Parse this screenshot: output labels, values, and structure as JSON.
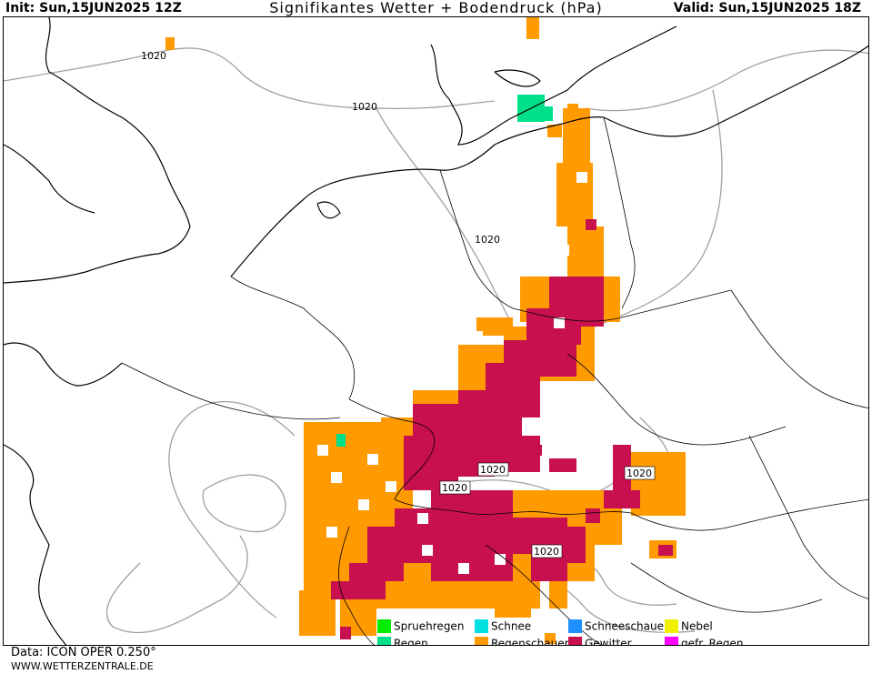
{
  "header": {
    "init": "Init: Sun,15JUN2025 12Z",
    "title": "Signifikantes Wetter  +  Bodendruck (hPa)",
    "valid": "Valid: Sun,15JUN2025 18Z"
  },
  "isobar_labels": [
    "1020",
    "1020",
    "1020",
    "1020",
    "1020",
    "1020",
    "1020"
  ],
  "legend": [
    {
      "label": "Spruehregen",
      "color": "#00ee00"
    },
    {
      "label": "Schnee",
      "color": "#00e0e0"
    },
    {
      "label": "Schneeschauer",
      "color": "#1e90ff"
    },
    {
      "label": "Nebel",
      "color": "#f0f000"
    },
    {
      "label": "Regen",
      "color": "#00e08a"
    },
    {
      "label": "Regenschauer",
      "color": "#ff9a00"
    },
    {
      "label": "Gewitter",
      "color": "#c8104e"
    },
    {
      "label": "gefr. Regen",
      "color": "#ff00ff"
    }
  ],
  "footer": {
    "data": "Data: ICON OPER 0.250°",
    "url": "WWW.WETTERZENTRALE.DE"
  }
}
